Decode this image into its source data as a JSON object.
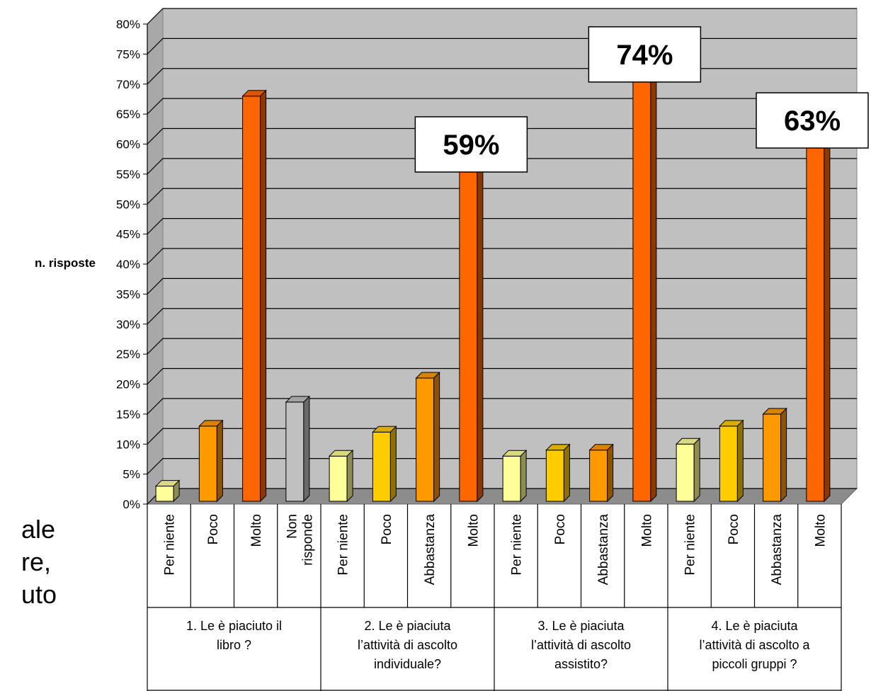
{
  "chart_data": {
    "type": "bar",
    "ylabel": "n. risposte",
    "ylim": [
      0,
      80
    ],
    "ytick_step": 5,
    "ytick_suffix": "%",
    "grid": true,
    "groups": [
      {
        "label": "1. Le è piaciuto il libro ?",
        "bars": [
          {
            "category": "Per niente",
            "value": 3,
            "color": "#FFFF99"
          },
          {
            "category": "Poco",
            "value": 13,
            "color": "#FF9900"
          },
          {
            "category": "Molto",
            "value": 68,
            "color": "#FF6600"
          },
          {
            "category": "Non risponde",
            "value": 17,
            "color": "#C0C0C0"
          }
        ]
      },
      {
        "label": "2. Le è piaciuta l’attività di ascolto individuale?",
        "bars": [
          {
            "category": "Per niente",
            "value": 8,
            "color": "#FFFF99"
          },
          {
            "category": "Poco",
            "value": 12,
            "color": "#FFCC00"
          },
          {
            "category": "Abbastanza",
            "value": 21,
            "color": "#FF9900"
          },
          {
            "category": "Molto",
            "value": 59,
            "color": "#FF6600"
          }
        ]
      },
      {
        "label": "3. Le è piaciuta l’attività di ascolto assistito?",
        "bars": [
          {
            "category": "Per niente",
            "value": 8,
            "color": "#FFFF99"
          },
          {
            "category": "Poco",
            "value": 9,
            "color": "#FFCC00"
          },
          {
            "category": "Abbastanza",
            "value": 9,
            "color": "#FF9900"
          },
          {
            "category": "Molto",
            "value": 74,
            "color": "#FF6600"
          }
        ]
      },
      {
        "label": "4. Le è piaciuta l’attività di ascolto a piccoli gruppi ?",
        "bars": [
          {
            "category": "Per niente",
            "value": 10,
            "color": "#FFFF99"
          },
          {
            "category": "Poco",
            "value": 13,
            "color": "#FFCC00"
          },
          {
            "category": "Abbastanza",
            "value": 15,
            "color": "#FF9900"
          },
          {
            "category": "Molto",
            "value": 63,
            "color": "#FF6600"
          }
        ]
      }
    ],
    "callouts": [
      {
        "text": "59%",
        "group": 1,
        "bar": 3
      },
      {
        "text": "74%",
        "group": 2,
        "bar": 3
      },
      {
        "text": "63%",
        "group": 3,
        "bar": 3
      }
    ]
  },
  "background_text_fragments": [
    "ale",
    "re,",
    "uto"
  ]
}
